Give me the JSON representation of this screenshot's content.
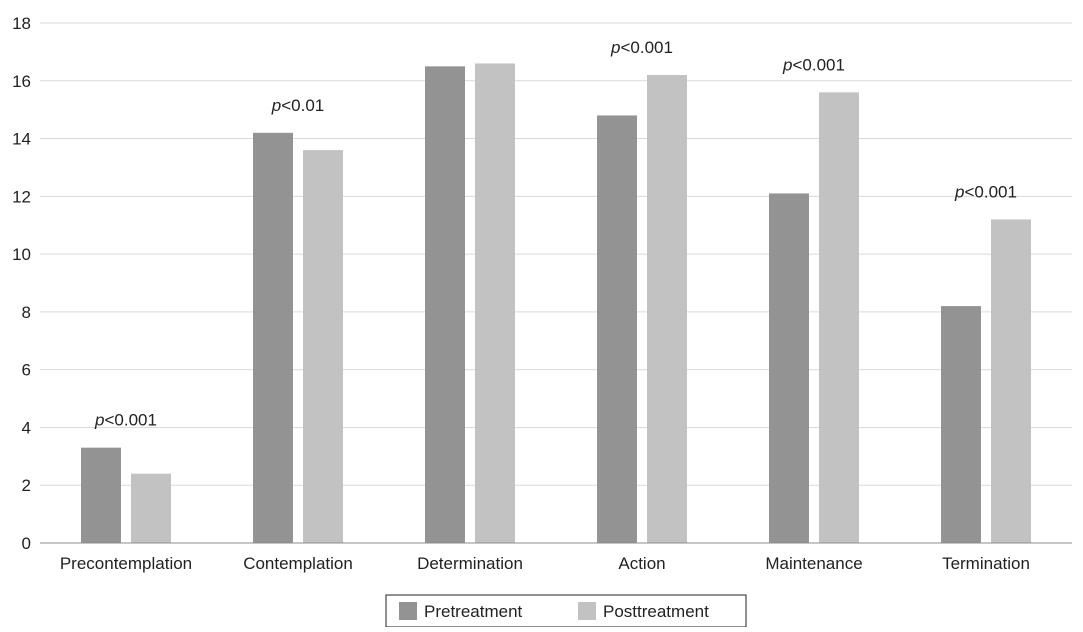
{
  "chart_data": {
    "type": "bar",
    "categories": [
      "Precontemplation",
      "Contemplation",
      "Determination",
      "Action",
      "Maintenance",
      "Termination"
    ],
    "series": [
      {
        "name": "Pretreatment",
        "values": [
          3.3,
          14.2,
          16.5,
          14.8,
          12.1,
          8.2
        ],
        "color": "#939393"
      },
      {
        "name": "Posttreatment",
        "values": [
          2.4,
          13.6,
          16.6,
          16.2,
          15.6,
          11.2
        ],
        "color": "#c2c2c2"
      }
    ],
    "annotations": [
      {
        "category": "Precontemplation",
        "p_italic": "p",
        "text": "<0.001"
      },
      {
        "category": "Contemplation",
        "p_italic": "p",
        "text": "<0.01"
      },
      {
        "category": "Action",
        "p_italic": "p",
        "text": "<0.001"
      },
      {
        "category": "Maintenance",
        "p_italic": "p",
        "text": "<0.001"
      },
      {
        "category": "Termination",
        "p_italic": "p",
        "text": "<0.001"
      }
    ],
    "yticks": [
      "0",
      "2",
      "4",
      "6",
      "8",
      "10",
      "12",
      "14",
      "16",
      "18"
    ],
    "ylim": [
      0,
      18
    ],
    "title": "",
    "xlabel": "",
    "ylabel": "",
    "grid": true,
    "legend_position": "bottom-center"
  }
}
